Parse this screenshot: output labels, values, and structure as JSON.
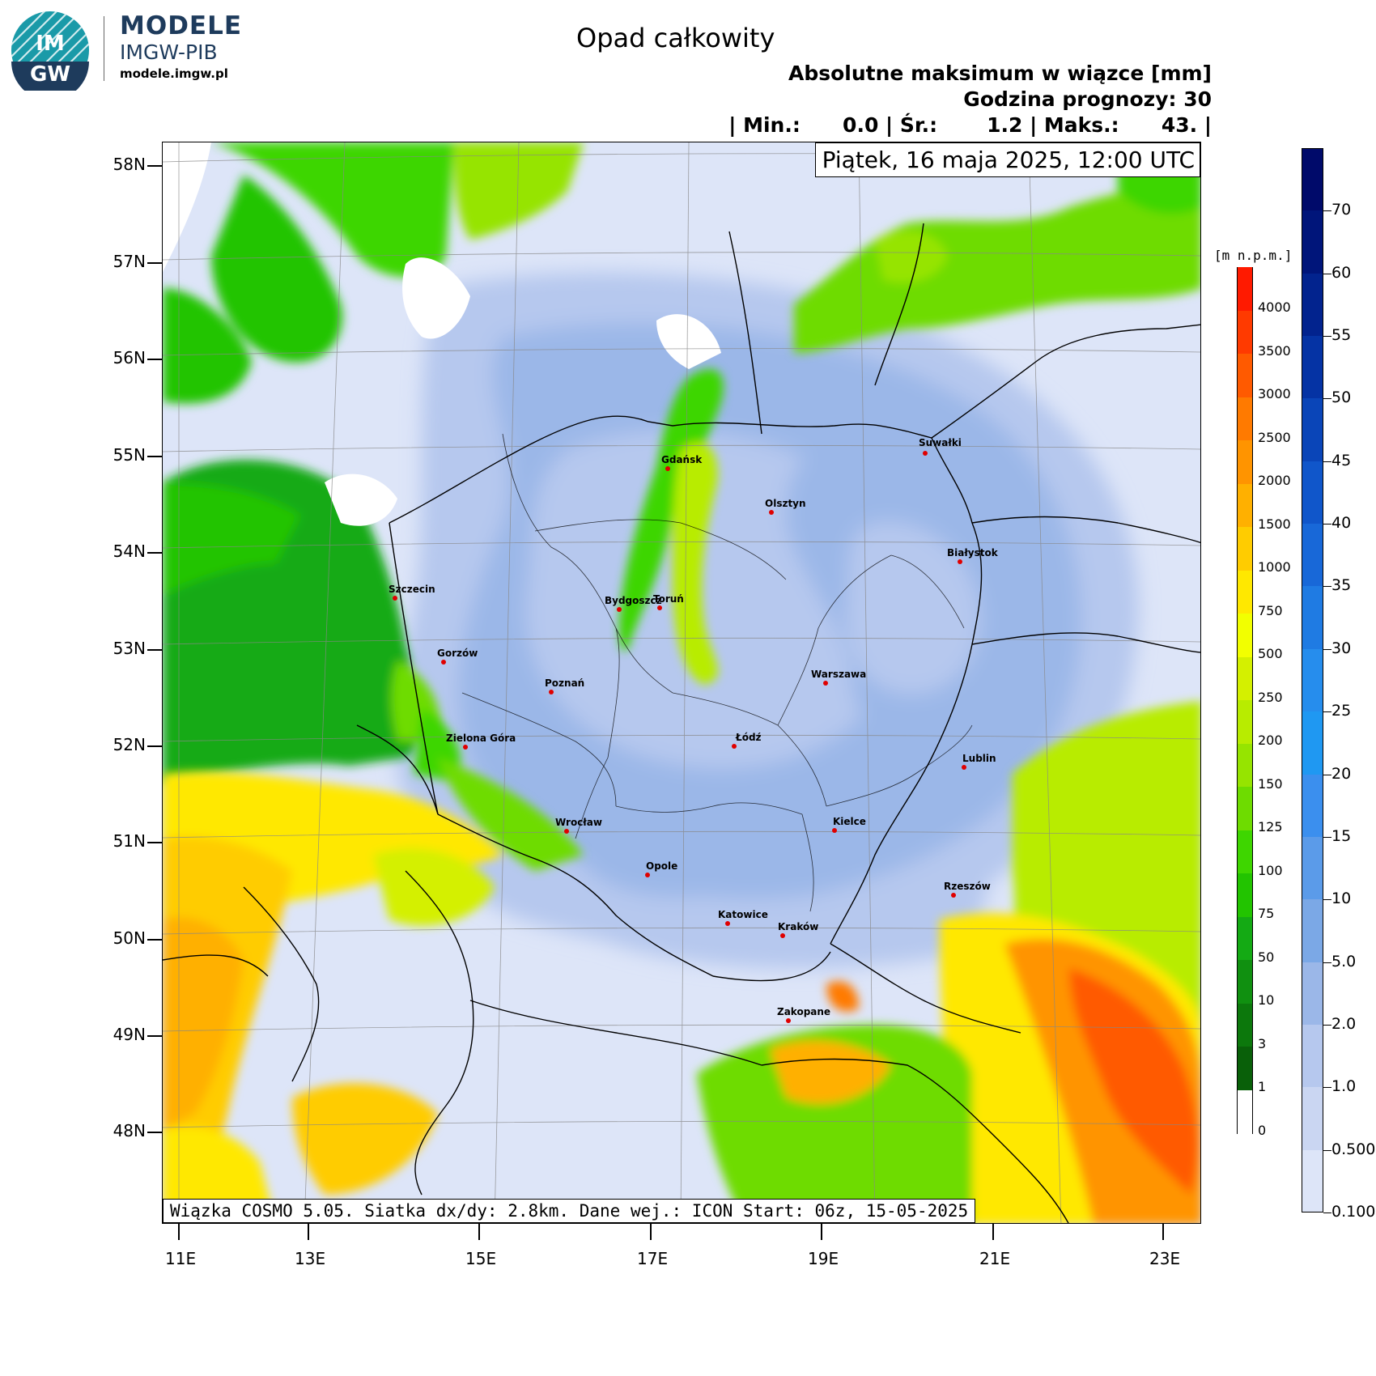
{
  "logo": {
    "badge_top": "IM",
    "badge_bottom": "GW",
    "line1": "MODELE",
    "line2": "IMGW-PIB",
    "line3": "modele.imgw.pl"
  },
  "header": {
    "title": "Opad całkowity",
    "subtitle": "Absolutne maksimum w wiązce [mm]",
    "forecast_hour": "Godzina prognozy: 30",
    "stats": "| Min.:      0.0 | Śr.:       1.2 | Maks.:      43. |"
  },
  "map": {
    "date": "Piątek, 16 maja 2025, 12:00 UTC",
    "info": "Wiązka COSMO 5.05. Siatka dx/dy: 2.8km. Dane wej.: ICON Start: 06z, 15-05-2025",
    "lat_ticks": [
      "58N",
      "57N",
      "56N",
      "55N",
      "54N",
      "53N",
      "52N",
      "51N",
      "50N",
      "49N",
      "48N"
    ],
    "lon_ticks": [
      "11E",
      "13E",
      "15E",
      "17E",
      "19E",
      "21E",
      "23E"
    ],
    "cities": [
      {
        "name": "Gdańsk"
      },
      {
        "name": "Olsztyn"
      },
      {
        "name": "Suwałki"
      },
      {
        "name": "Białystok"
      },
      {
        "name": "Szczecin"
      },
      {
        "name": "Bydgoszcz"
      },
      {
        "name": "Toruń"
      },
      {
        "name": "Gorzów"
      },
      {
        "name": "Poznań"
      },
      {
        "name": "Warszawa"
      },
      {
        "name": "Zielona Góra"
      },
      {
        "name": "Łódź"
      },
      {
        "name": "Lublin"
      },
      {
        "name": "Wrocław"
      },
      {
        "name": "Kielce"
      },
      {
        "name": "Opole"
      },
      {
        "name": "Rzeszów"
      },
      {
        "name": "Katowice"
      },
      {
        "name": "Kraków"
      },
      {
        "name": "Zakopane"
      }
    ]
  },
  "elevation_bar": {
    "unit": "[m n.p.m.]",
    "labels": [
      "4000",
      "3500",
      "3000",
      "2500",
      "2000",
      "1500",
      "1000",
      "750",
      "500",
      "250",
      "200",
      "150",
      "125",
      "100",
      "75",
      "50",
      "10",
      "3",
      "1",
      "0"
    ],
    "colors": [
      "#ff1a00",
      "#ff3a00",
      "#ff5a00",
      "#ff7a00",
      "#ff9400",
      "#ffb000",
      "#ffcc00",
      "#ffe800",
      "#f2ff00",
      "#d4f000",
      "#b8ec00",
      "#96e400",
      "#6edc00",
      "#3ed600",
      "#22c400",
      "#14aa14",
      "#109010",
      "#0c780c",
      "#096009",
      "#ffffff"
    ]
  },
  "precip_bar": {
    "labels": [
      "70",
      "60",
      "55",
      "50",
      "45",
      "40",
      "35",
      "30",
      "25",
      "20",
      "15",
      "10",
      "5.0",
      "2.0",
      "1.0",
      "0.500",
      "0.100"
    ],
    "colors": [
      "#000a6a",
      "#00157a",
      "#02238e",
      "#0533a4",
      "#0a45b8",
      "#1056ca",
      "#1868d8",
      "#1f7be3",
      "#268ded",
      "#1f98f2",
      "#3b8fee",
      "#5b9be9",
      "#7ba8e6",
      "#9bb7e8",
      "#b6c8ee",
      "#cad6f2",
      "#dde5f8"
    ]
  }
}
